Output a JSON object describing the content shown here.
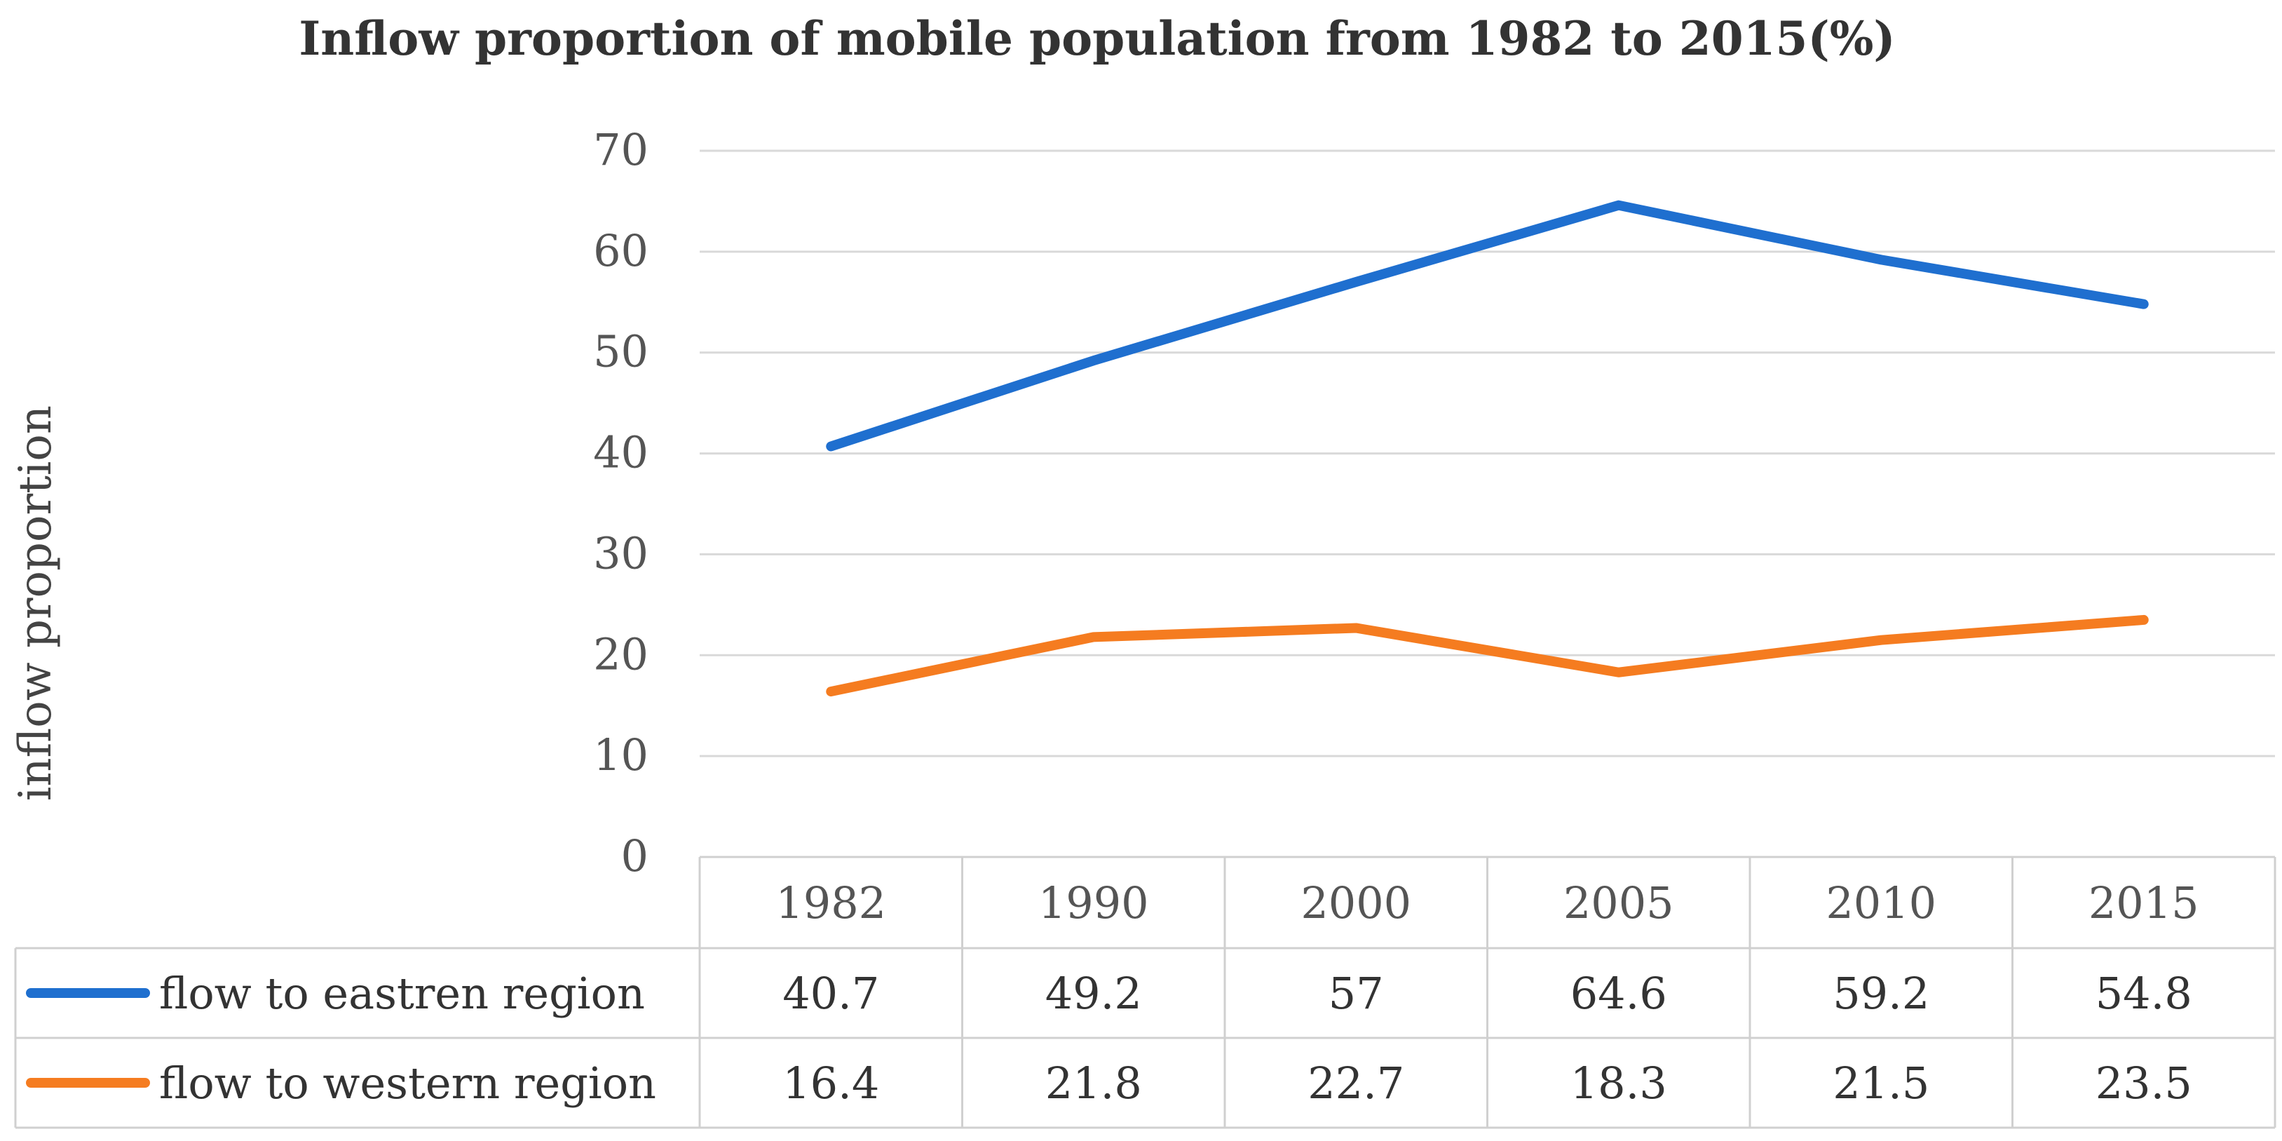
{
  "chart_data": {
    "type": "line",
    "title": "Inflow proportion of mobile population from 1982 to 2015(%)",
    "xlabel": "",
    "ylabel": "inflow proportion",
    "ylim": [
      0,
      70
    ],
    "yticks": [
      0,
      10,
      20,
      30,
      40,
      50,
      60,
      70
    ],
    "grid": true,
    "categories": [
      "1982",
      "1990",
      "2000",
      "2005",
      "2010",
      "2015"
    ],
    "series": [
      {
        "name": "flow to eastren region",
        "color": "#1f6fcf",
        "values": [
          40.7,
          49.2,
          57,
          64.6,
          59.2,
          54.8
        ]
      },
      {
        "name": "flow to western region",
        "color": "#f57c20",
        "values": [
          16.4,
          21.8,
          22.7,
          18.3,
          21.5,
          23.5
        ]
      }
    ],
    "data_table": true
  }
}
